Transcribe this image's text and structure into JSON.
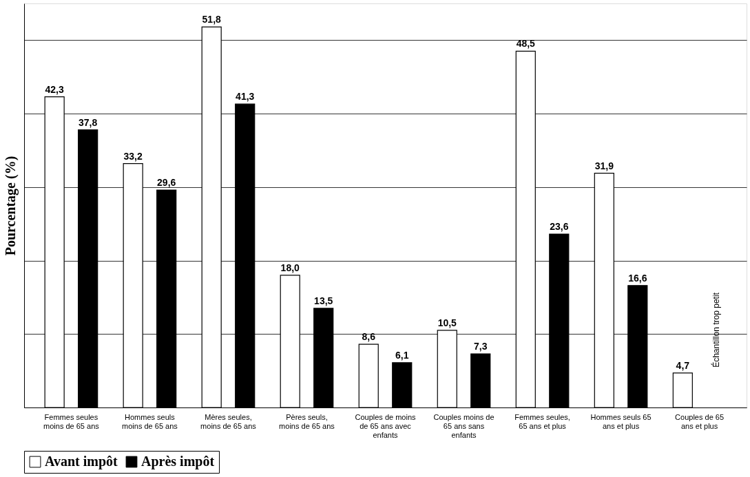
{
  "chart_data": {
    "type": "bar",
    "ylabel": "Pourcentage (%)",
    "categories": [
      "Femmes seules moins de 65 ans",
      "Hommes seuls moins de 65 ans",
      "Mères seules, moins de 65 ans",
      "Pères seuls, moins de 65 ans",
      "Couples de moins de 65 ans avec enfants",
      "Couples moins de 65 ans sans enfants",
      "Femmes seules, 65 ans et plus",
      "Hommes seuls 65 ans et plus",
      "Couples de 65 ans et plus"
    ],
    "series": [
      {
        "name": "Avant impôt",
        "color": "#ffffff",
        "values": [
          42.3,
          33.2,
          51.8,
          18.0,
          8.6,
          10.5,
          48.5,
          31.9,
          4.7
        ],
        "value_labels": [
          "42,3",
          "33,2",
          "51,8",
          "18,0",
          "8,6",
          "10,5",
          "48,5",
          "31,9",
          "4,7"
        ]
      },
      {
        "name": "Après impôt",
        "color": "#000000",
        "values": [
          37.8,
          29.6,
          41.3,
          13.5,
          6.1,
          7.3,
          23.6,
          16.6,
          null
        ],
        "value_labels": [
          "37,8",
          "29,6",
          "41,3",
          "13,5",
          "6,1",
          "7,3",
          "23,6",
          "16,6",
          null
        ]
      }
    ],
    "tick_labels": "x",
    "grid": "y",
    "legend": "bottom",
    "annotations": [
      "Échantillon trop petit"
    ]
  }
}
